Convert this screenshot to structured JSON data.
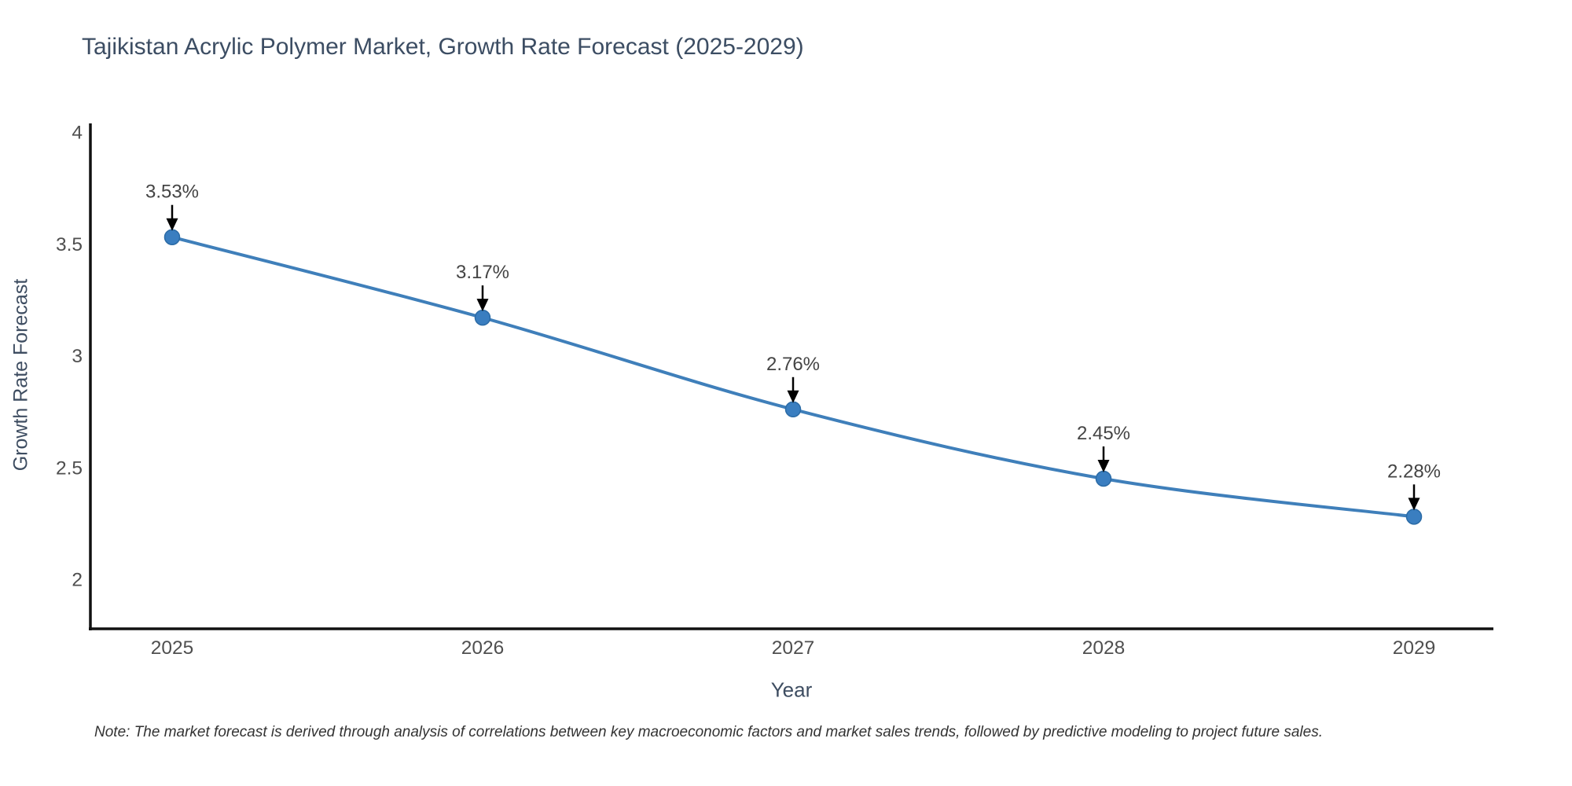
{
  "page": {
    "background": "#ffffff"
  },
  "note": {
    "text": "Note: The market forecast is derived through analysis of correlations between key macroeconomic factors and market sales trends, followed by predictive modeling to project future sales."
  },
  "chart_data": {
    "type": "line",
    "title": "Tajikistan Acrylic Polymer Market, Growth Rate Forecast (2025-2029)",
    "xlabel": "Year",
    "ylabel": "Growth Rate Forecast",
    "categories": [
      "2025",
      "2026",
      "2027",
      "2028",
      "2029"
    ],
    "values": [
      3.53,
      3.17,
      2.76,
      2.45,
      2.28
    ],
    "data_labels": [
      "3.53%",
      "3.17%",
      "2.76%",
      "2.45%",
      "2.28%"
    ],
    "yticks": [
      2,
      2.5,
      3,
      3.5,
      4
    ],
    "ytick_labels": [
      "2",
      "2.5",
      "3",
      "3.5",
      "4"
    ],
    "ylim": [
      1.78,
      4.04
    ],
    "grid": false,
    "legend": false,
    "smooth_line": true,
    "annotations_have_arrows": true,
    "colors": {
      "line": "#3f7fba",
      "marker_fill": "#3a7ec0",
      "marker_edge": "#2b6ba6",
      "axis": "#111111",
      "tick_label": "#4f4f4f",
      "annotation_text": "#444444",
      "annotation_arrow": "#000000",
      "title": "#3c4d63",
      "axis_title": "#3e4d61"
    }
  }
}
